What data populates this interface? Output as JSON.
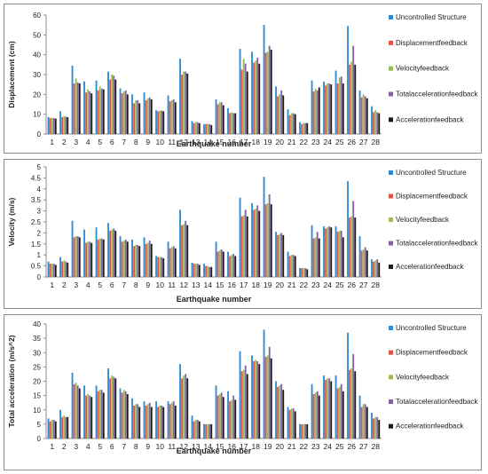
{
  "series_names": [
    "Uncontrolled Structure",
    "Displacementfeedback",
    "Velocityfeedback",
    "Totalaccelerationfeedback",
    "Accelerationfeedback"
  ],
  "series_colors": [
    "#2e8bd4",
    "#e05545",
    "#9bbb59",
    "#8064a2",
    "#1a1a1a"
  ],
  "chart_data": [
    {
      "type": "bar",
      "xlabel": "Earthquake number",
      "ylabel": "Displacement (cm)",
      "ylim": [
        0,
        60
      ],
      "yticks": [
        0,
        10,
        20,
        30,
        40,
        50,
        60
      ],
      "grid": false,
      "legend": "right",
      "categories": [
        "1",
        "2",
        "3",
        "4",
        "5",
        "6",
        "7",
        "8",
        "9",
        "10",
        "11",
        "12",
        "13",
        "14",
        "15",
        "16",
        "17",
        "18",
        "19",
        "20",
        "21",
        "22",
        "23",
        "24",
        "25",
        "26",
        "27",
        "28"
      ],
      "series": [
        {
          "name": "Uncontrolled Structure",
          "values": [
            8.6,
            11.5,
            34.5,
            26.5,
            27,
            31.5,
            23,
            20,
            21,
            12,
            19.5,
            38,
            6.5,
            5,
            17.5,
            13,
            43,
            41.5,
            55,
            24,
            12.5,
            6,
            27,
            26.5,
            32,
            54.5,
            22,
            14
          ]
        },
        {
          "name": "Displacementfeedback",
          "values": [
            8,
            8.5,
            25.5,
            21,
            22,
            27.5,
            20.5,
            15.5,
            17,
            11.5,
            16.5,
            30,
            5.5,
            5,
            15,
            10.5,
            32.5,
            36,
            41,
            19,
            9.5,
            5,
            21.5,
            24.5,
            25.5,
            35,
            18.5,
            11
          ]
        },
        {
          "name": "Velocityfeedback",
          "values": [
            8.2,
            9,
            28,
            22.5,
            24,
            30,
            21.5,
            17,
            18,
            11.8,
            17,
            31.5,
            6,
            5.2,
            16,
            11,
            38,
            37,
            41.5,
            20,
            10.5,
            5.5,
            23,
            25.5,
            28.5,
            36.5,
            20,
            12
          ]
        },
        {
          "name": "Totalaccelerationfeedback",
          "values": [
            8,
            8.8,
            26,
            21.5,
            23,
            29.5,
            22,
            17,
            18.5,
            11.8,
            17.5,
            31.5,
            6,
            5,
            16,
            10.5,
            35.5,
            38.5,
            44.5,
            22,
            10.5,
            5.5,
            22,
            25.5,
            29,
            44.5,
            19,
            11
          ]
        },
        {
          "name": "Accelerationfeedback",
          "values": [
            7.8,
            8.5,
            25.5,
            20.5,
            22.5,
            27.5,
            20,
            15.5,
            17.5,
            11.5,
            16,
            30.5,
            5.5,
            4.5,
            14.5,
            10.5,
            31.5,
            35.5,
            42.5,
            19.5,
            10,
            5.5,
            23.5,
            25,
            25.5,
            35,
            18,
            10.5
          ]
        }
      ]
    },
    {
      "type": "bar",
      "xlabel": "Earthquake number",
      "ylabel": "Velocity (m/s)",
      "ylim": [
        0,
        5
      ],
      "yticks": [
        0,
        0.5,
        1,
        1.5,
        2,
        2.5,
        3,
        3.5,
        4,
        4.5,
        5
      ],
      "grid": false,
      "legend": "right",
      "categories": [
        "1",
        "2",
        "3",
        "4",
        "5",
        "6",
        "7",
        "8",
        "9",
        "10",
        "11",
        "12",
        "13",
        "14",
        "15",
        "16",
        "17",
        "18",
        "19",
        "20",
        "21",
        "22",
        "23",
        "24",
        "25",
        "26",
        "27",
        "28"
      ],
      "series": [
        {
          "name": "Uncontrolled Structure",
          "values": [
            0.7,
            0.9,
            2.55,
            2.15,
            2.25,
            2.45,
            1.85,
            1.7,
            1.8,
            0.95,
            1.6,
            3.05,
            0.65,
            0.6,
            1.6,
            1.15,
            3.6,
            3.35,
            4.55,
            2.05,
            1.15,
            0.4,
            2.35,
            2.3,
            2.3,
            4.35,
            1.85,
            0.8
          ]
        },
        {
          "name": "Displacementfeedback",
          "values": [
            0.6,
            0.7,
            1.8,
            1.55,
            1.7,
            2.1,
            1.6,
            1.4,
            1.5,
            0.9,
            1.3,
            2.35,
            0.6,
            0.5,
            1.15,
            0.95,
            2.75,
            3.05,
            3.3,
            1.9,
            0.95,
            0.4,
            1.75,
            2.2,
            2.05,
            2.7,
            1.2,
            0.7
          ]
        },
        {
          "name": "Velocityfeedback",
          "values": [
            0.6,
            0.75,
            1.85,
            1.6,
            1.75,
            2.15,
            1.65,
            1.45,
            1.55,
            0.9,
            1.35,
            2.4,
            0.6,
            0.5,
            1.2,
            1.0,
            2.8,
            3.1,
            3.35,
            1.95,
            1.0,
            0.4,
            1.8,
            2.25,
            2.1,
            2.75,
            1.25,
            0.75
          ]
        },
        {
          "name": "Totalaccelerationfeedback",
          "values": [
            0.6,
            0.7,
            1.85,
            1.6,
            1.75,
            2.2,
            1.7,
            1.45,
            1.65,
            0.9,
            1.4,
            2.55,
            0.6,
            0.45,
            1.25,
            1.05,
            3.05,
            3.25,
            3.75,
            2.0,
            1.0,
            0.4,
            2.05,
            2.3,
            2.1,
            3.45,
            1.35,
            0.8
          ]
        },
        {
          "name": "Accelerationfeedback",
          "values": [
            0.55,
            0.65,
            1.8,
            1.55,
            1.7,
            2.1,
            1.6,
            1.4,
            1.5,
            0.85,
            1.3,
            2.35,
            0.55,
            0.45,
            1.15,
            0.95,
            2.75,
            3.0,
            3.3,
            1.9,
            0.95,
            0.35,
            1.75,
            2.25,
            1.8,
            2.7,
            1.2,
            0.65
          ]
        }
      ]
    },
    {
      "type": "bar",
      "xlabel": "Earthquake number",
      "ylabel": "Total acceleration (m/s^2)",
      "ylim": [
        0,
        40
      ],
      "yticks": [
        0,
        5,
        10,
        15,
        20,
        25,
        30,
        35,
        40
      ],
      "grid": false,
      "legend": "right",
      "categories": [
        "1",
        "2",
        "3",
        "4",
        "5",
        "6",
        "7",
        "8",
        "9",
        "10",
        "11",
        "12",
        "13",
        "14",
        "15",
        "16",
        "17",
        "18",
        "19",
        "20",
        "21",
        "22",
        "23",
        "24",
        "25",
        "26",
        "27",
        "28"
      ],
      "series": [
        {
          "name": "Uncontrolled Structure",
          "values": [
            7,
            10,
            23,
            18.5,
            18.5,
            24.5,
            17.5,
            14,
            13,
            13,
            13,
            26,
            8,
            5,
            18.5,
            16.5,
            30.5,
            29,
            38,
            20,
            11,
            5,
            19,
            22,
            22,
            37,
            15,
            9
          ]
        },
        {
          "name": "Displacementfeedback",
          "values": [
            6,
            7.5,
            19,
            15,
            16.5,
            21,
            16,
            11.5,
            11.5,
            11,
            12,
            21,
            6,
            5,
            15,
            13,
            23.5,
            27,
            28.5,
            18,
            10,
            5,
            15.5,
            20.5,
            17.5,
            24,
            11,
            7
          ]
        },
        {
          "name": "Velocityfeedback",
          "values": [
            6.5,
            8,
            19.5,
            15.5,
            17,
            22,
            17,
            12,
            12,
            11.5,
            12.5,
            22,
            6.5,
            5,
            15.5,
            13.5,
            24,
            27.5,
            29,
            18.5,
            10.5,
            5,
            16,
            21,
            18,
            24.5,
            12,
            7.5
          ]
        },
        {
          "name": "Totalaccelerationfeedback",
          "values": [
            6.5,
            7.5,
            18.5,
            15,
            17,
            21.5,
            16.5,
            12,
            12.5,
            11.5,
            13,
            22.5,
            6.5,
            5,
            16,
            15,
            25.5,
            27,
            32,
            19,
            10.5,
            5,
            16.5,
            21,
            19,
            29.5,
            12,
            7.5
          ]
        },
        {
          "name": "Accelerationfeedback",
          "values": [
            6,
            7.5,
            17.5,
            14.5,
            16,
            21,
            15.5,
            11,
            11,
            11,
            11.5,
            21,
            6,
            5,
            14.5,
            13.5,
            22.5,
            26,
            28,
            17,
            9.5,
            5,
            15,
            20,
            16.5,
            23.5,
            11,
            6.5
          ]
        }
      ]
    }
  ]
}
